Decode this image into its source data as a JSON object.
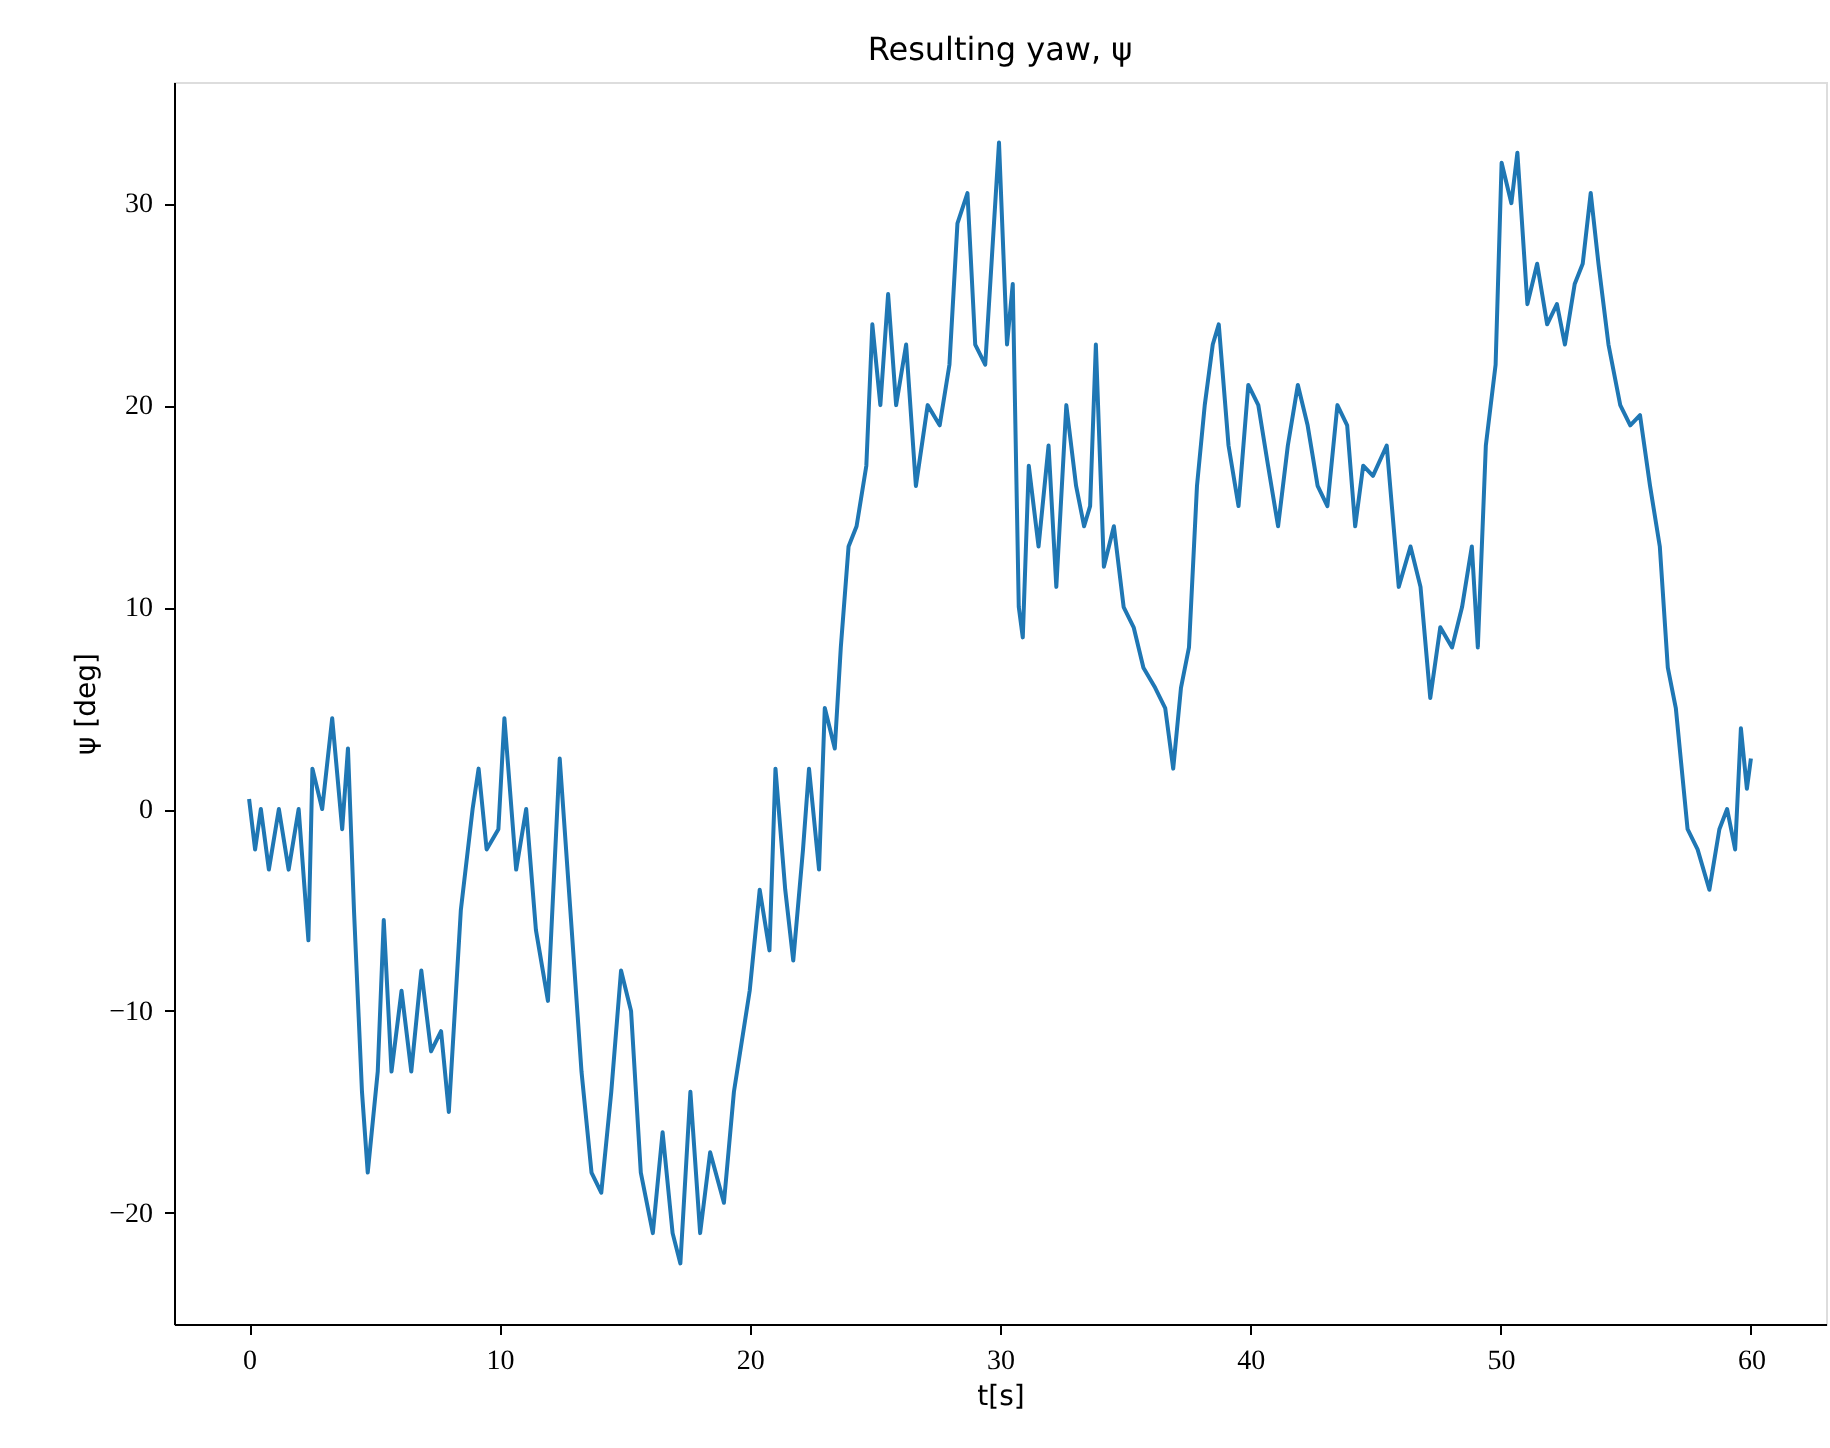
{
  "chart_data": {
    "type": "line",
    "title": "Resulting yaw, ψ",
    "xlabel": "t[s]",
    "ylabel": "ψ [deg]",
    "x": [
      0,
      0.24,
      0.47,
      0.79,
      1.19,
      1.58,
      1.98,
      2.37,
      2.53,
      2.92,
      3.32,
      3.72,
      3.95,
      4.19,
      4.51,
      4.74,
      5.14,
      5.38,
      5.69,
      6.09,
      6.48,
      6.88,
      7.27,
      7.67,
      7.98,
      8.46,
      8.93,
      9.17,
      9.49,
      9.96,
      10.2,
      10.67,
      11.07,
      11.46,
      11.94,
      12.41,
      12.89,
      13.28,
      13.68,
      14.07,
      14.47,
      14.86,
      15.26,
      15.65,
      16.13,
      16.52,
      16.92,
      17.23,
      17.63,
      18.02,
      18.42,
      18.97,
      19.37,
      20,
      20.4,
      20.79,
      21.03,
      21.42,
      21.74,
      22.13,
      22.37,
      22.77,
      23,
      23.4,
      23.64,
      23.95,
      24.27,
      24.66,
      24.9,
      25.22,
      25.53,
      25.85,
      26.25,
      26.64,
      27.11,
      27.59,
      27.98,
      28.3,
      28.7,
      29.01,
      29.41,
      29.96,
      30.28,
      30.51,
      30.75,
      30.91,
      31.15,
      31.54,
      31.94,
      32.25,
      32.65,
      33.04,
      33.36,
      33.6,
      33.83,
      34.15,
      34.55,
      34.94,
      35.34,
      35.73,
      36.2,
      36.6,
      36.92,
      37.23,
      37.55,
      37.87,
      38.18,
      38.5,
      38.74,
      39.13,
      39.53,
      39.92,
      40.32,
      40.71,
      41.11,
      41.5,
      41.9,
      42.29,
      42.69,
      43.08,
      43.48,
      43.87,
      44.19,
      44.51,
      44.9,
      45.45,
      45.93,
      46.4,
      46.8,
      47.19,
      47.59,
      48.06,
      48.46,
      48.85,
      49.09,
      49.41,
      49.8,
      50.04,
      50.43,
      50.67,
      51.07,
      51.46,
      51.86,
      52.25,
      52.57,
      52.96,
      53.28,
      53.6,
      53.91,
      54.31,
      54.78,
      55.18,
      55.57,
      55.97,
      56.36,
      56.68,
      57,
      57.47,
      57.87,
      58.34,
      58.74,
      59.05,
      59.37,
      59.6,
      59.84,
      60
    ],
    "series": [
      {
        "color": "#1f77b4",
        "values": [
          0.5,
          -2,
          0,
          -3,
          0,
          -3,
          0,
          -6.5,
          2,
          0,
          4.5,
          -1,
          3,
          -5,
          -14,
          -18,
          -13,
          -5.5,
          -13,
          -9,
          -13,
          -8,
          -12,
          -11,
          -15,
          -5,
          0,
          2,
          -2,
          -1,
          4.5,
          -3,
          0,
          -6,
          -9.5,
          2.5,
          -6,
          -13,
          -18,
          -19,
          -14,
          -8,
          -10,
          -18,
          -21,
          -16,
          -21,
          -22.5,
          -14,
          -21,
          -17,
          -19.5,
          -14,
          -9,
          -4,
          -7,
          2,
          -4,
          -7.5,
          -2,
          2,
          -3,
          5,
          3,
          8,
          13,
          14,
          17,
          24,
          20,
          25.5,
          20,
          23,
          16,
          20,
          19,
          22,
          29,
          30.5,
          23,
          22,
          33,
          23,
          26,
          10,
          8.5,
          17,
          13,
          18,
          11,
          20,
          16,
          14,
          15,
          23,
          12,
          14,
          10,
          9,
          7,
          6,
          5,
          2,
          6,
          8,
          16,
          20,
          23,
          24,
          18,
          15,
          21,
          20,
          17,
          14,
          18,
          21,
          19,
          16,
          15,
          20,
          19,
          14,
          17,
          16.5,
          18,
          11,
          13,
          11,
          5.5,
          9,
          8,
          10,
          13,
          8,
          18,
          22,
          32,
          30,
          32.5,
          25,
          27,
          24,
          25,
          23,
          26,
          27,
          30.5,
          27,
          23,
          20,
          19,
          19.5,
          16,
          13,
          7,
          5,
          -1,
          -2,
          -4,
          -1,
          0,
          -2,
          4,
          1,
          2.5
        ]
      }
    ],
    "xlim": [
      -3,
      63
    ],
    "ylim": [
      -25.5,
      36
    ],
    "xticks": [
      0,
      10,
      20,
      30,
      40,
      50,
      60
    ],
    "yticks": [
      {
        "value": -20,
        "label": "−20"
      },
      {
        "value": -10,
        "label": "−10"
      },
      0,
      10,
      20,
      30
    ],
    "grid": false,
    "marker": "none",
    "line_style": "solid"
  }
}
